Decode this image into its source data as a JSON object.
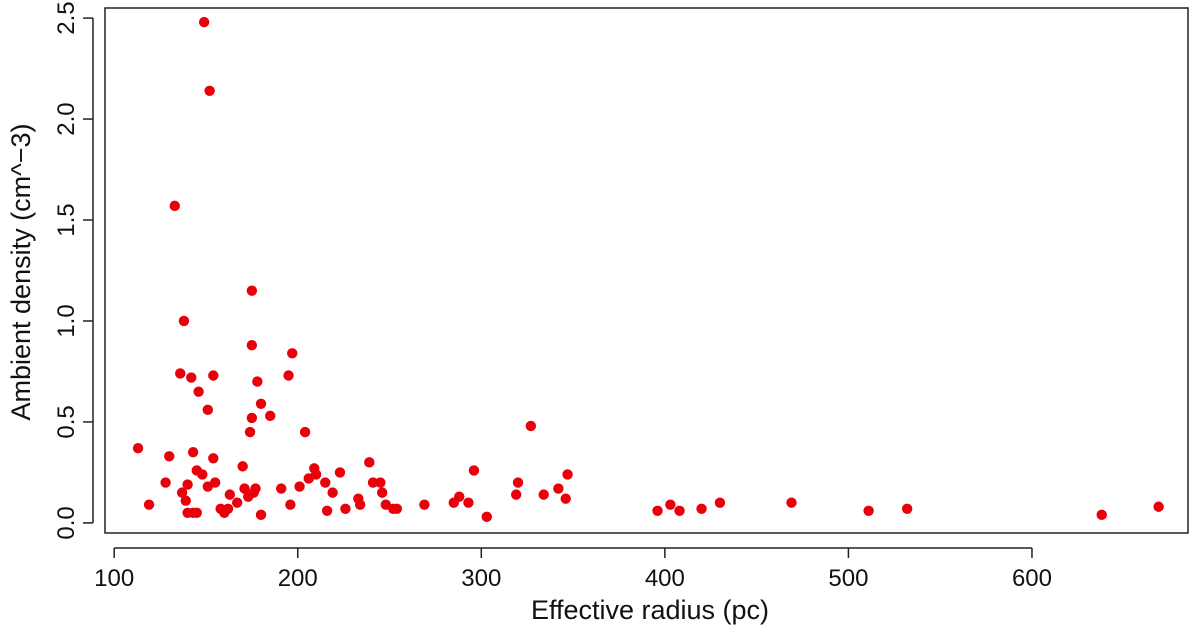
{
  "chart_data": {
    "type": "scatter",
    "xlabel": "Effective radius (pc)",
    "ylabel": "Ambient density (cm^−3)",
    "xlim": [
      95,
      685
    ],
    "ylim": [
      -0.05,
      2.55
    ],
    "xticks": [
      100,
      200,
      300,
      400,
      500,
      600
    ],
    "xtick_labels": [
      "100",
      "200",
      "300",
      "400",
      "500",
      "600"
    ],
    "yticks": [
      0.0,
      0.5,
      1.0,
      1.5,
      2.0,
      2.5
    ],
    "ytick_labels": [
      "0.0",
      "0.5",
      "1.0",
      "1.5",
      "2.0",
      "2.5"
    ],
    "grid": false,
    "marker_color": "#e8000b",
    "series": [
      {
        "points": [
          [
            113,
            0.37
          ],
          [
            119,
            0.09
          ],
          [
            128,
            0.2
          ],
          [
            130,
            0.33
          ],
          [
            133,
            1.57
          ],
          [
            136,
            0.74
          ],
          [
            137,
            0.15
          ],
          [
            138,
            1.0
          ],
          [
            139,
            0.11
          ],
          [
            140,
            0.05
          ],
          [
            140,
            0.19
          ],
          [
            142,
            0.72
          ],
          [
            143,
            0.35
          ],
          [
            143,
            0.05
          ],
          [
            145,
            0.05
          ],
          [
            145,
            0.26
          ],
          [
            146,
            0.65
          ],
          [
            148,
            0.24
          ],
          [
            149,
            2.48
          ],
          [
            151,
            0.56
          ],
          [
            151,
            0.18
          ],
          [
            152,
            2.14
          ],
          [
            154,
            0.73
          ],
          [
            154,
            0.32
          ],
          [
            155,
            0.2
          ],
          [
            158,
            0.07
          ],
          [
            160,
            0.05
          ],
          [
            162,
            0.07
          ],
          [
            163,
            0.14
          ],
          [
            167,
            0.1
          ],
          [
            170,
            0.28
          ],
          [
            171,
            0.17
          ],
          [
            173,
            0.13
          ],
          [
            174,
            0.45
          ],
          [
            175,
            0.88
          ],
          [
            175,
            1.15
          ],
          [
            175,
            0.52
          ],
          [
            176,
            0.15
          ],
          [
            177,
            0.17
          ],
          [
            178,
            0.7
          ],
          [
            180,
            0.59
          ],
          [
            180,
            0.04
          ],
          [
            185,
            0.53
          ],
          [
            191,
            0.17
          ],
          [
            195,
            0.73
          ],
          [
            196,
            0.09
          ],
          [
            197,
            0.84
          ],
          [
            201,
            0.18
          ],
          [
            204,
            0.45
          ],
          [
            206,
            0.22
          ],
          [
            209,
            0.27
          ],
          [
            210,
            0.24
          ],
          [
            215,
            0.2
          ],
          [
            216,
            0.06
          ],
          [
            219,
            0.15
          ],
          [
            223,
            0.25
          ],
          [
            226,
            0.07
          ],
          [
            233,
            0.12
          ],
          [
            234,
            0.09
          ],
          [
            239,
            0.3
          ],
          [
            241,
            0.2
          ],
          [
            245,
            0.2
          ],
          [
            246,
            0.15
          ],
          [
            248,
            0.09
          ],
          [
            252,
            0.07
          ],
          [
            254,
            0.07
          ],
          [
            269,
            0.09
          ],
          [
            285,
            0.1
          ],
          [
            288,
            0.13
          ],
          [
            293,
            0.1
          ],
          [
            296,
            0.26
          ],
          [
            303,
            0.03
          ],
          [
            319,
            0.14
          ],
          [
            320,
            0.2
          ],
          [
            327,
            0.48
          ],
          [
            334,
            0.14
          ],
          [
            342,
            0.17
          ],
          [
            346,
            0.12
          ],
          [
            347,
            0.24
          ],
          [
            396,
            0.06
          ],
          [
            403,
            0.09
          ],
          [
            408,
            0.06
          ],
          [
            420,
            0.07
          ],
          [
            430,
            0.1
          ],
          [
            469,
            0.1
          ],
          [
            511,
            0.06
          ],
          [
            532,
            0.07
          ],
          [
            638,
            0.04
          ],
          [
            669,
            0.08
          ]
        ]
      }
    ]
  }
}
